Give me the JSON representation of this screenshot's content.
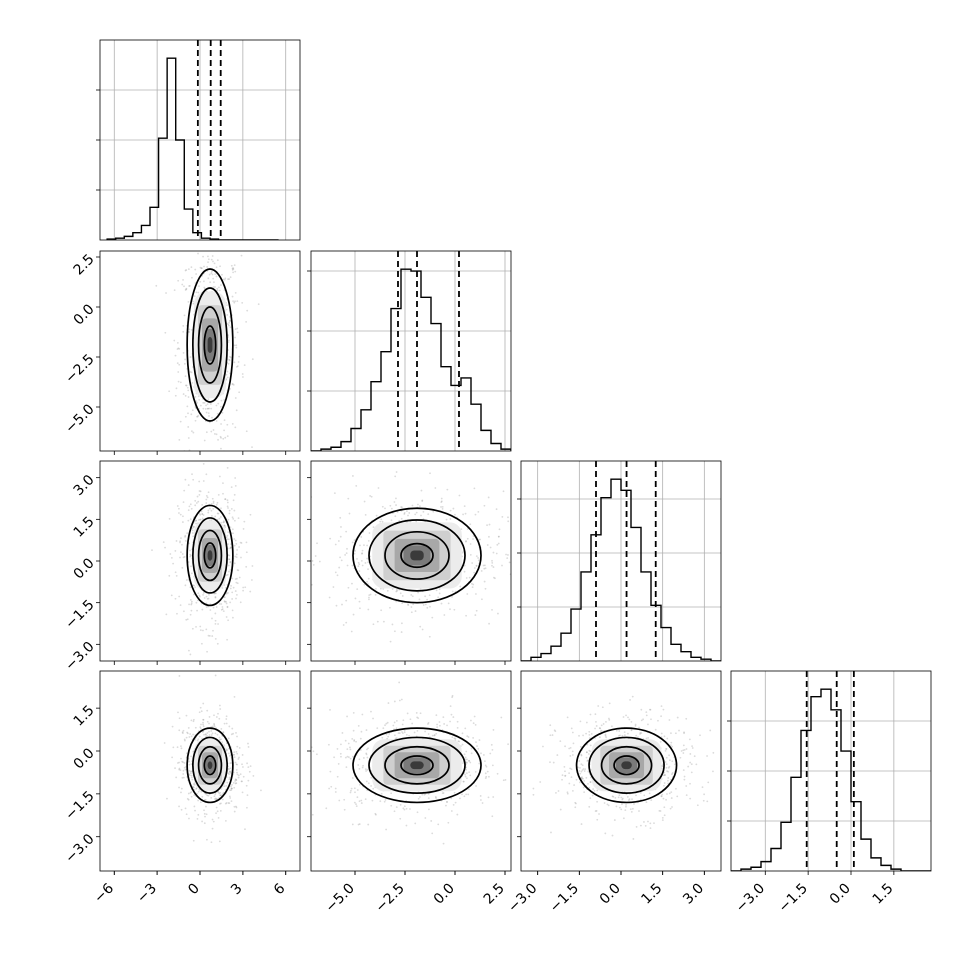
{
  "chart_data": {
    "type": "corner",
    "n_params": 4,
    "ranges": [
      [
        -7,
        7
      ],
      [
        -7.2,
        2.8
      ],
      [
        -3.6,
        3.6
      ],
      [
        -4.2,
        2.8
      ]
    ],
    "x_ticks": [
      {
        "values": [
          -6,
          -3,
          0,
          3,
          6
        ],
        "labels": [
          "−6",
          "−3",
          "0",
          "3",
          "6"
        ]
      },
      {
        "values": [
          -5,
          -2.5,
          0,
          2.5
        ],
        "labels": [
          "−5.0",
          "−2.5",
          "0.0",
          "2.5"
        ]
      },
      {
        "values": [
          -3,
          -1.5,
          0,
          1.5,
          3
        ],
        "labels": [
          "−3.0",
          "−1.5",
          "0.0",
          "1.5",
          "3.0"
        ]
      },
      {
        "values": [
          -3,
          -1.5,
          0,
          1.5
        ],
        "labels": [
          "−3.0",
          "−1.5",
          "0.0",
          "1.5"
        ]
      }
    ],
    "y_ticks": [
      null,
      {
        "values": [
          2.5,
          0,
          -2.5,
          -5
        ],
        "labels": [
          "2.5",
          "0.0",
          "−2.5",
          "−5.0"
        ]
      },
      {
        "values": [
          3,
          1.5,
          0,
          -1.5,
          -3
        ],
        "labels": [
          "3.0",
          "1.5",
          "0.0",
          "−1.5",
          "−3.0"
        ]
      },
      {
        "values": [
          1.5,
          0,
          -1.5,
          -3
        ],
        "labels": [
          "1.5",
          "0.0",
          "−1.5",
          "−3.0"
        ]
      }
    ],
    "diag_y_ticks": [
      [
        0.25,
        0.5,
        0.75
      ],
      [
        0.3,
        0.6,
        0.9
      ],
      [
        0.27,
        0.54,
        0.81
      ],
      [
        0.25,
        0.5,
        0.75
      ]
    ],
    "histograms": [
      {
        "x_start": -6.5,
        "bin_width": 0.6,
        "counts": [
          0.005,
          0.01,
          0.02,
          0.04,
          0.08,
          0.18,
          0.56,
          1.0,
          0.55,
          0.17,
          0.04,
          0.01,
          0.005,
          0.0,
          0.0,
          0.0,
          0.0,
          0.0,
          0.0,
          0.0
        ],
        "quantiles": [
          -0.15,
          0.75,
          1.45
        ]
      },
      {
        "x_start": -7.2,
        "bin_width": 0.5,
        "counts": [
          0.0,
          0.01,
          0.02,
          0.05,
          0.12,
          0.22,
          0.37,
          0.53,
          0.76,
          0.97,
          0.96,
          0.82,
          0.68,
          0.45,
          0.35,
          0.39,
          0.25,
          0.11,
          0.04,
          0.01
        ],
        "quantiles": [
          -2.85,
          -1.9,
          0.2
        ]
      },
      {
        "x_start": -3.6,
        "bin_width": 0.36,
        "counts": [
          0.0,
          0.02,
          0.04,
          0.08,
          0.15,
          0.28,
          0.48,
          0.68,
          0.88,
          0.98,
          0.92,
          0.72,
          0.48,
          0.3,
          0.18,
          0.09,
          0.05,
          0.02,
          0.01,
          0.0
        ],
        "quantiles": [
          -0.9,
          0.2,
          1.25
        ]
      },
      {
        "x_start": -4.2,
        "bin_width": 0.35,
        "counts": [
          0.0,
          0.01,
          0.02,
          0.05,
          0.12,
          0.26,
          0.5,
          0.75,
          0.93,
          0.97,
          0.86,
          0.64,
          0.37,
          0.17,
          0.07,
          0.03,
          0.01,
          0.0,
          0.0,
          0.0
        ],
        "quantiles": [
          -1.55,
          -0.5,
          0.1
        ]
      }
    ],
    "joint": [
      {
        "row": 1,
        "col": 0,
        "mean": [
          0.7,
          -1.9
        ],
        "sd": [
          0.8,
          1.9
        ],
        "rho": 0
      },
      {
        "row": 2,
        "col": 0,
        "mean": [
          0.7,
          0.2
        ],
        "sd": [
          0.8,
          0.9
        ],
        "rho": 0
      },
      {
        "row": 2,
        "col": 1,
        "mean": [
          -1.9,
          0.2
        ],
        "sd": [
          1.6,
          0.85
        ],
        "rho": 0
      },
      {
        "row": 3,
        "col": 0,
        "mean": [
          0.7,
          -0.5
        ],
        "sd": [
          0.8,
          0.65
        ],
        "rho": 0
      },
      {
        "row": 3,
        "col": 1,
        "mean": [
          -1.9,
          -0.5
        ],
        "sd": [
          1.6,
          0.65
        ],
        "rho": 0
      },
      {
        "row": 3,
        "col": 2,
        "mean": [
          0.2,
          -0.5
        ],
        "sd": [
          0.9,
          0.65
        ],
        "rho": 0
      }
    ],
    "grid": true
  }
}
